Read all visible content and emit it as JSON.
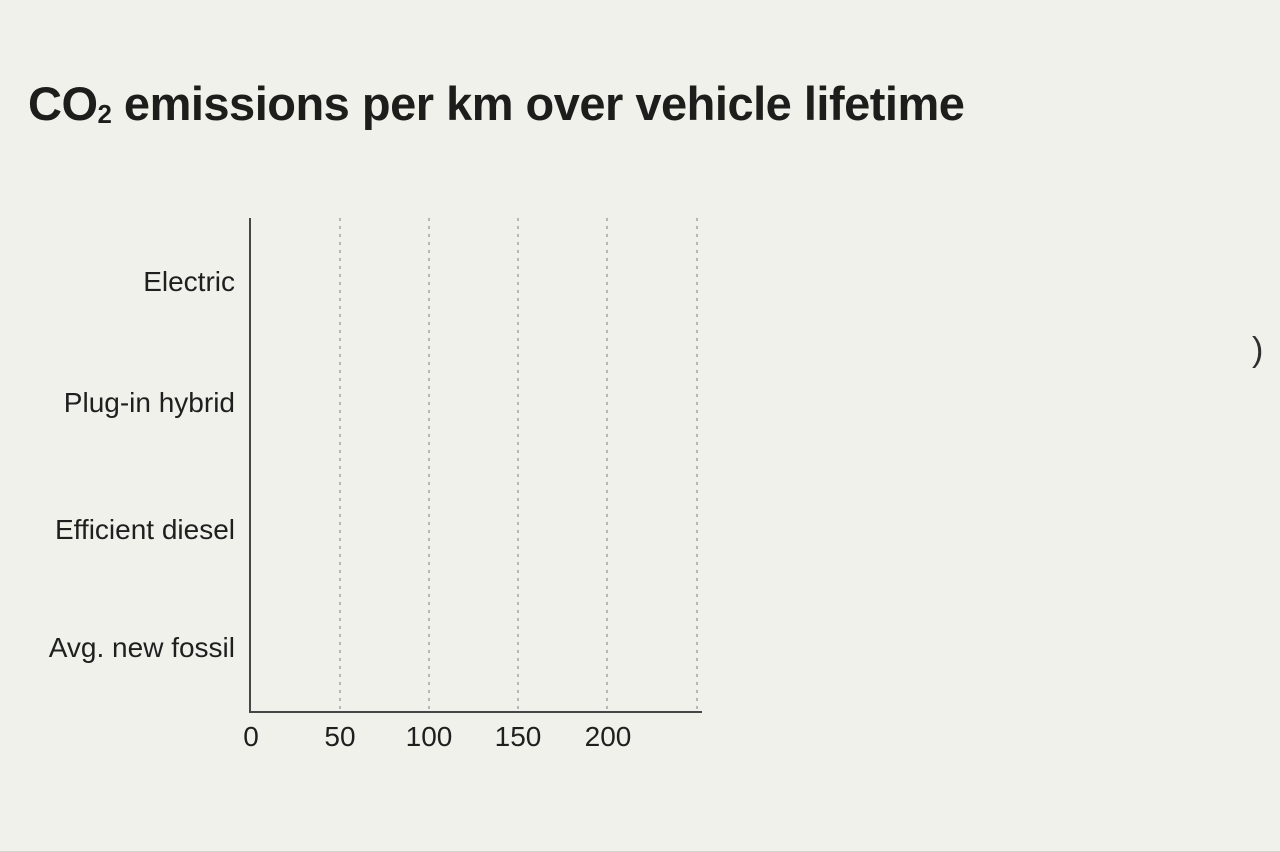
{
  "page": {
    "background_color": "#f0f1ea"
  },
  "title": {
    "full": "CO₂ emissions per km over vehicle lifetime",
    "prefix": "CO",
    "subscript": "2",
    "rest": " emissions per km over vehicle lifetime"
  },
  "stray_fragment": {
    "text": ")"
  },
  "chart_data": {
    "type": "bar",
    "orientation": "horizontal",
    "title": "CO₂ emissions per km over vehicle lifetime",
    "categories": [
      "Electric",
      "Plug-in hybrid",
      "Efficient diesel",
      "Avg. new fossil"
    ],
    "values": [
      null,
      null,
      null,
      null
    ],
    "values_note": "No bars are rendered in the plot area — only axes, gridlines and labels are visible (empty/pre-animation chart frame)",
    "xlabel": "",
    "ylabel": "",
    "xticks": [
      0,
      50,
      100,
      150,
      200
    ],
    "xtick_labels": [
      "0",
      "50",
      "100",
      "150",
      "200"
    ],
    "xlim": [
      0,
      253
    ],
    "gridlines_x": [
      50,
      100,
      150,
      200,
      250
    ],
    "grid_style": "dotted vertical gridlines",
    "legend": "none",
    "colors": {
      "background": "#f0f1ea",
      "axis": "#474747",
      "gridline": "#b5b7ba",
      "text": "#1f1f1f",
      "title_text": "#1d1d1b"
    }
  }
}
